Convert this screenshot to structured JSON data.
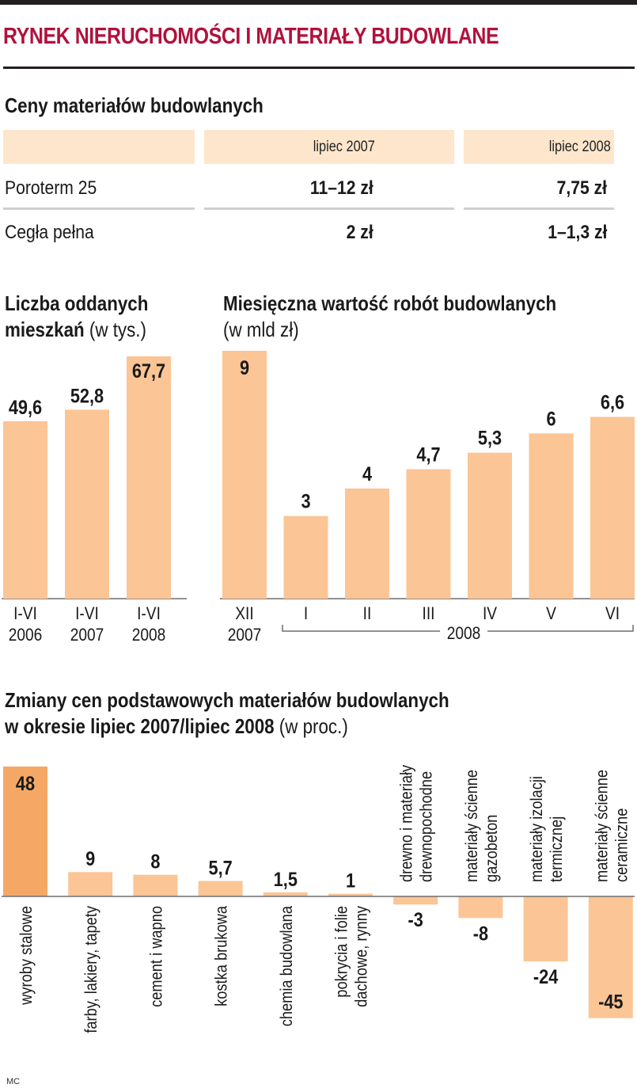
{
  "header": {
    "title": "RYNEK NIERUCHOMOŚCI I MATERIAŁY BUDOWLANE"
  },
  "prices_table": {
    "title": "Ceny materiałów budowlanych",
    "columns": [
      "lipiec 2007",
      "lipiec 2008"
    ],
    "rows": [
      {
        "label": "Poroterm 25",
        "values": [
          "11–12 zł",
          "7,75 zł"
        ]
      },
      {
        "label": "Cegła pełna",
        "values": [
          "2 zł",
          "1–1,3 zł"
        ]
      }
    ]
  },
  "chart_data": [
    {
      "type": "bar",
      "title_line1": "Liczba oddanych",
      "title_line2_bold": "mieszkań",
      "title_line2_unit": "(w tys.)",
      "categories": [
        [
          "I-VI",
          "2006"
        ],
        [
          "I-VI",
          "2007"
        ],
        [
          "I-VI",
          "2008"
        ]
      ],
      "values": [
        49.6,
        52.8,
        67.7
      ],
      "labels": [
        "49,6",
        "52,8",
        "67,7"
      ],
      "ylim": [
        0,
        67.7
      ],
      "bar_color": "#fbc596"
    },
    {
      "type": "bar",
      "title": "Miesięczna wartość robót budowlanych",
      "unit": "(w mld zł)",
      "categories": [
        [
          "XII",
          "2007"
        ],
        [
          "I"
        ],
        [
          "II"
        ],
        [
          "III"
        ],
        [
          "IV"
        ],
        [
          "V"
        ],
        [
          "VI"
        ]
      ],
      "values": [
        9,
        3,
        4,
        4.7,
        5.3,
        6,
        6.6
      ],
      "labels": [
        "9",
        "3",
        "4",
        "4,7",
        "5,3",
        "6",
        "6,6"
      ],
      "group_label": "2008",
      "ylim": [
        0,
        9
      ],
      "bar_color": "#fbc596"
    },
    {
      "type": "bar",
      "title_line1": "Zmiany cen podstawowych materiałów budowlanych",
      "title_line2_bold": "w okresie lipiec 2007/lipiec 2008",
      "title_line2_unit": "(w proc.)",
      "categories": [
        [
          "wyroby stalowe"
        ],
        [
          "farby, lakiery, tapety"
        ],
        [
          "cement i wapno"
        ],
        [
          "kostka brukowa"
        ],
        [
          "chemia budowlana"
        ],
        [
          "pokrycia i folie",
          "dachowe, rynny"
        ],
        [
          "drewno i materiały",
          "drewnopochodne"
        ],
        [
          "materiały ścienne",
          "gazobeton"
        ],
        [
          "materiały izolacji",
          "termicznej"
        ],
        [
          "materiały ścienne",
          "ceramiczne"
        ]
      ],
      "values": [
        48,
        9,
        8,
        5.7,
        1.5,
        1,
        -3,
        -8,
        -24,
        -45
      ],
      "labels": [
        "48",
        "9",
        "8",
        "5,7",
        "1,5",
        "1",
        "-3",
        "-8",
        "-24",
        "-45"
      ],
      "ylim": [
        -45,
        48
      ],
      "highlight_color": "#f5a865",
      "bar_color": "#fbc596"
    }
  ],
  "footer": {
    "credit": "MC"
  }
}
